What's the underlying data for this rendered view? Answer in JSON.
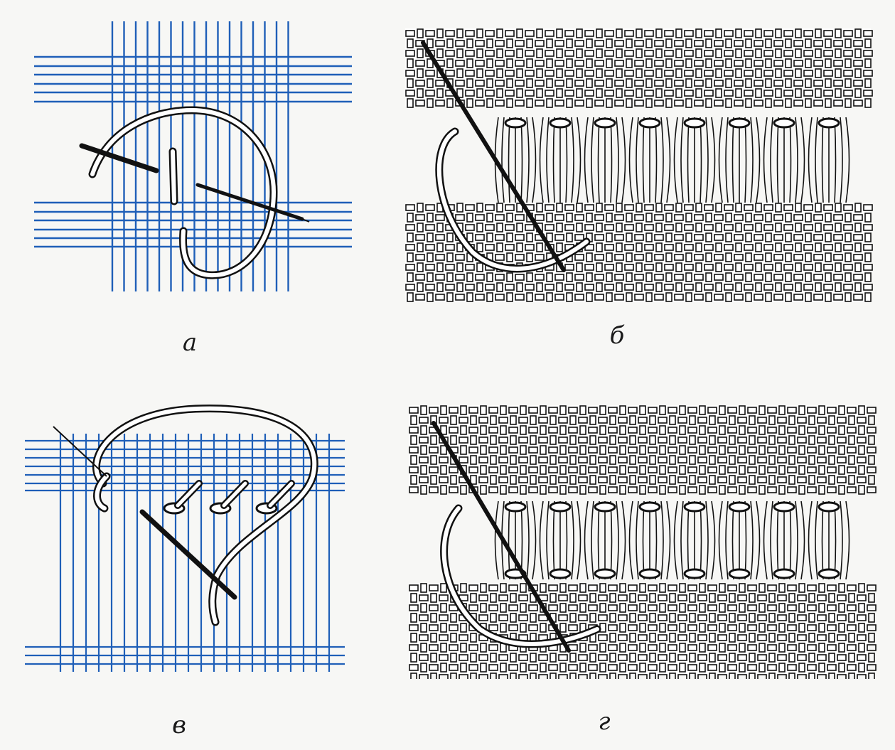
{
  "figure": {
    "panels": [
      {
        "id": "a",
        "label": "а",
        "style": "blue-threads"
      },
      {
        "id": "b",
        "label": "б",
        "style": "woven-fabric"
      },
      {
        "id": "v",
        "label": "в",
        "style": "blue-threads"
      },
      {
        "id": "g",
        "label": "г",
        "style": "woven-fabric"
      }
    ],
    "colors": {
      "thread_blue": "#1f5fb8",
      "fabric_line": "#111111",
      "background": "#f7f7f5",
      "needle": "#111111",
      "working_thread_fill": "#ffffff"
    }
  }
}
